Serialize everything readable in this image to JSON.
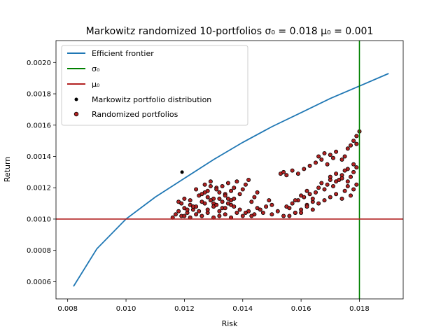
{
  "chart_data": {
    "type": "scatter",
    "title": "Markowitz randomized 10-portfolios σ₀ = 0.018 μ₀ = 0.001",
    "xlabel": "Risk",
    "ylabel": "Return",
    "xlim": [
      0.0076,
      0.0195
    ],
    "ylim": [
      0.00049,
      0.00214
    ],
    "xticks": [
      0.008,
      0.01,
      0.012,
      0.014,
      0.016,
      0.018
    ],
    "xtick_labels": [
      "0.008",
      "0.010",
      "0.012",
      "0.014",
      "0.016",
      "0.018"
    ],
    "yticks": [
      0.0006,
      0.0008,
      0.001,
      0.0012,
      0.0014,
      0.0016,
      0.0018,
      0.002
    ],
    "ytick_labels": [
      "0.0006",
      "0.0008",
      "0.0010",
      "0.0012",
      "0.0014",
      "0.0016",
      "0.0018",
      "0.0020"
    ],
    "grid": false,
    "legend_position": "upper-left",
    "sigma0": 0.018,
    "mu0": 0.001,
    "series": [
      {
        "name": "Efficient frontier",
        "kind": "line",
        "color": "#1f77b4",
        "x": [
          0.0082,
          0.009,
          0.01,
          0.011,
          0.012,
          0.013,
          0.014,
          0.015,
          0.016,
          0.017,
          0.018,
          0.019
        ],
        "y": [
          0.00057,
          0.00081,
          0.001,
          0.00114,
          0.00126,
          0.00138,
          0.00149,
          0.00159,
          0.00168,
          0.00177,
          0.00185,
          0.00193
        ]
      },
      {
        "name": "σ₀",
        "kind": "vline",
        "color": "#008000",
        "x": 0.018
      },
      {
        "name": "μ₀",
        "kind": "hline",
        "color": "#b22222",
        "y": 0.001
      },
      {
        "name": "Markowitz portfolio distribution",
        "kind": "scatter",
        "color": "#000000",
        "x": [
          0.01192
        ],
        "y": [
          0.0013
        ]
      },
      {
        "name": "Randomized portfolios",
        "kind": "scatter",
        "color": "#b22222",
        "edge": "#000000",
        "x": [
          0.0116,
          0.0117,
          0.0118,
          0.0119,
          0.012,
          0.0121,
          0.0122,
          0.0123,
          0.0118,
          0.012,
          0.0122,
          0.0124,
          0.0125,
          0.0126,
          0.0127,
          0.0128,
          0.0124,
          0.0126,
          0.0128,
          0.0129,
          0.013,
          0.0131,
          0.0132,
          0.0127,
          0.0129,
          0.0131,
          0.0133,
          0.0134,
          0.0135,
          0.0136,
          0.013,
          0.0132,
          0.0134,
          0.0136,
          0.0137,
          0.0138,
          0.0133,
          0.0135,
          0.0137,
          0.0139,
          0.014,
          0.0141,
          0.0142,
          0.0143,
          0.0144,
          0.0145,
          0.012,
          0.0122,
          0.0124,
          0.0126,
          0.0128,
          0.013,
          0.0132,
          0.0134,
          0.0136,
          0.0138,
          0.014,
          0.0142,
          0.0144,
          0.0146,
          0.0147,
          0.0148,
          0.0149,
          0.015,
          0.0128,
          0.013,
          0.0132,
          0.0134,
          0.0136,
          0.0127,
          0.0129,
          0.0131,
          0.0133,
          0.0135,
          0.0137,
          0.0139,
          0.0141,
          0.0143,
          0.0145,
          0.0119,
          0.0121,
          0.0123,
          0.0125,
          0.0155,
          0.0156,
          0.0157,
          0.0158,
          0.0159,
          0.016,
          0.0161,
          0.0162,
          0.0163,
          0.0164,
          0.0153,
          0.0154,
          0.0155,
          0.0157,
          0.0159,
          0.0161,
          0.0158,
          0.016,
          0.0162,
          0.0164,
          0.0165,
          0.0166,
          0.0167,
          0.0168,
          0.0169,
          0.017,
          0.0171,
          0.0172,
          0.0163,
          0.0165,
          0.0167,
          0.0169,
          0.0171,
          0.0166,
          0.0168,
          0.017,
          0.0172,
          0.0174,
          0.0175,
          0.0176,
          0.0177,
          0.0178,
          0.0179,
          0.0173,
          0.0174,
          0.0175,
          0.0176,
          0.0177,
          0.0178,
          0.0179,
          0.0175,
          0.0176,
          0.0177,
          0.0178,
          0.0179,
          0.017,
          0.0172,
          0.0174,
          0.0176,
          0.0178,
          0.0168,
          0.017,
          0.0172,
          0.0174,
          0.016,
          0.0162,
          0.0164,
          0.0166,
          0.015,
          0.0152,
          0.0154,
          0.0156,
          0.0158,
          0.0179,
          0.018
        ],
        "y": [
          0.00101,
          0.00103,
          0.00105,
          0.00102,
          0.00107,
          0.00104,
          0.00109,
          0.00106,
          0.00111,
          0.00113,
          0.00112,
          0.00108,
          0.00115,
          0.00111,
          0.00117,
          0.00114,
          0.00119,
          0.00116,
          0.00118,
          0.00121,
          0.00113,
          0.0012,
          0.00117,
          0.00122,
          0.00124,
          0.00119,
          0.00121,
          0.00116,
          0.00123,
          0.00118,
          0.0011,
          0.00113,
          0.00115,
          0.00112,
          0.0012,
          0.00124,
          0.00107,
          0.0011,
          0.00113,
          0.00116,
          0.00119,
          0.00122,
          0.00125,
          0.00111,
          0.00114,
          0.00117,
          0.00102,
          0.00101,
          0.00103,
          0.00102,
          0.00104,
          0.00101,
          0.00102,
          0.00103,
          0.00101,
          0.00104,
          0.00102,
          0.00105,
          0.00103,
          0.00106,
          0.00104,
          0.00108,
          0.00112,
          0.00109,
          0.00106,
          0.00108,
          0.00105,
          0.00107,
          0.00109,
          0.0011,
          0.00112,
          0.00109,
          0.00111,
          0.00113,
          0.00108,
          0.00106,
          0.00104,
          0.00102,
          0.00107,
          0.0011,
          0.00106,
          0.00108,
          0.00105,
          0.00108,
          0.00102,
          0.0011,
          0.00104,
          0.00112,
          0.00106,
          0.00114,
          0.00109,
          0.00116,
          0.00111,
          0.00129,
          0.0013,
          0.00128,
          0.00131,
          0.00129,
          0.00132,
          0.00112,
          0.00115,
          0.00118,
          0.00113,
          0.00117,
          0.0012,
          0.00123,
          0.00119,
          0.00122,
          0.00125,
          0.00121,
          0.00124,
          0.00134,
          0.00136,
          0.00138,
          0.00135,
          0.00139,
          0.0014,
          0.00142,
          0.00141,
          0.00143,
          0.00138,
          0.0014,
          0.00145,
          0.00147,
          0.0015,
          0.00148,
          0.00125,
          0.00128,
          0.00131,
          0.00124,
          0.00127,
          0.0013,
          0.00133,
          0.00118,
          0.00121,
          0.00115,
          0.00119,
          0.00122,
          0.00127,
          0.00129,
          0.00126,
          0.00132,
          0.00135,
          0.00112,
          0.00114,
          0.00116,
          0.00113,
          0.00104,
          0.00108,
          0.00106,
          0.0011,
          0.00103,
          0.00105,
          0.00102,
          0.00107,
          0.00104,
          0.00153,
          0.00156
        ]
      }
    ]
  }
}
